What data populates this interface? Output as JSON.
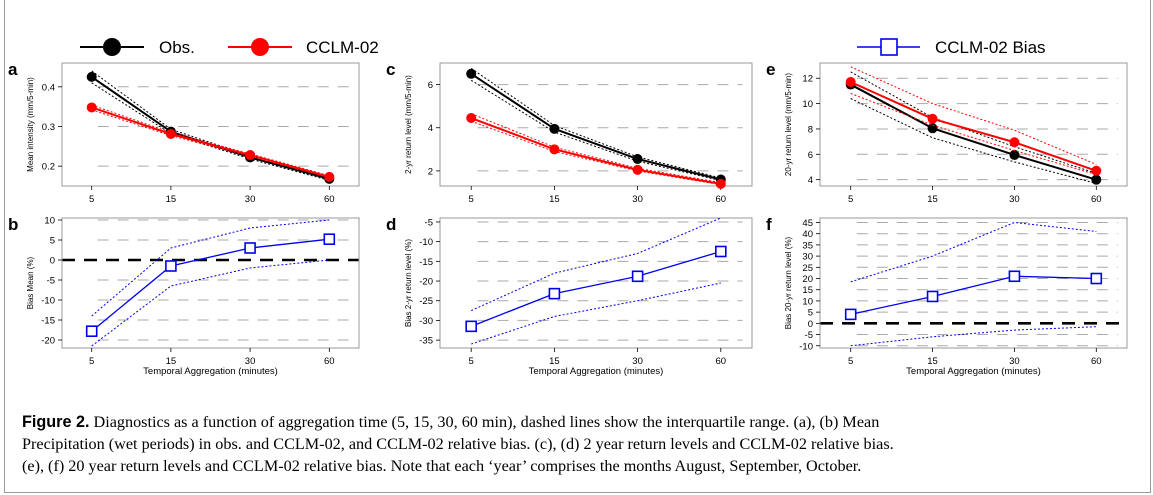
{
  "legend": {
    "obs_label": "Obs.",
    "model_label": "CCLM-02",
    "bias_label": "CCLM-02 Bias",
    "colors": {
      "obs": "#000000",
      "model": "#ff0000",
      "bias": "#0000ee",
      "zero_line": "#000000",
      "grid": "#aaaaaa"
    }
  },
  "caption": {
    "label": "Figure 2.",
    "line1": "Diagnostics as a function of aggregation time (5, 15, 30, 60 min), dashed lines show the interquartile range. (a), (b)  Mean",
    "line2": "Precipitation (wet periods) in obs. and CCLM-02, and CCLM-02 relative bias. (c), (d)  2 year return levels and CCLM-02 relative bias.",
    "line3": "(e), (f)  20 year return levels and CCLM-02 relative bias. Note that each ‘year’ comprises the months August, September, October."
  },
  "chart_data": [
    {
      "panel": "a",
      "type": "line",
      "categories": [
        "5",
        "15",
        "30",
        "60"
      ],
      "xlabel": "",
      "ylabel": "Mean intensity (mm/5-min)",
      "ylim": [
        0.15,
        0.46
      ],
      "yticks": [
        0.2,
        0.3,
        0.4
      ],
      "ytick_labels": [
        "0.2",
        "0.3",
        "0.4"
      ],
      "grid": true,
      "series": [
        {
          "name": "Obs.",
          "values": [
            0.425,
            0.287,
            0.222,
            0.168
          ],
          "q25": [
            0.41,
            0.282,
            0.218,
            0.164
          ],
          "q75": [
            0.44,
            0.293,
            0.226,
            0.172
          ]
        },
        {
          "name": "CCLM-02",
          "values": [
            0.348,
            0.281,
            0.228,
            0.173
          ],
          "q25": [
            0.342,
            0.277,
            0.225,
            0.171
          ],
          "q75": [
            0.354,
            0.285,
            0.231,
            0.176
          ]
        }
      ]
    },
    {
      "panel": "b",
      "type": "line",
      "categories": [
        "5",
        "15",
        "30",
        "60"
      ],
      "xlabel": "Temporal Aggregation (minutes)",
      "ylabel": "Bias Mean (%)",
      "ylim": [
        -22,
        10.5
      ],
      "yticks": [
        -20,
        -15,
        -10,
        -5,
        0,
        5,
        10
      ],
      "ytick_labels": [
        "-20",
        "-15",
        "-10",
        "-5",
        "0",
        "5",
        "10"
      ],
      "grid": true,
      "zero_line": 0,
      "series": [
        {
          "name": "CCLM-02 Bias",
          "values": [
            -17.8,
            -1.5,
            3,
            5.2
          ],
          "q25": [
            -21.5,
            -6.5,
            -2,
            0
          ],
          "q75": [
            -14,
            3,
            8,
            10
          ]
        }
      ]
    },
    {
      "panel": "c",
      "type": "line",
      "categories": [
        "5",
        "15",
        "30",
        "60"
      ],
      "xlabel": "",
      "ylabel": "2-yr return level (mm/5-min)",
      "ylim": [
        1.3,
        7.0
      ],
      "yticks": [
        2,
        4,
        6
      ],
      "ytick_labels": [
        "2",
        "4",
        "6"
      ],
      "grid": true,
      "series": [
        {
          "name": "Obs.",
          "values": [
            6.5,
            3.95,
            2.55,
            1.6
          ],
          "q25": [
            6.2,
            3.8,
            2.45,
            1.55
          ],
          "q75": [
            6.75,
            4.1,
            2.65,
            1.67
          ]
        },
        {
          "name": "CCLM-02",
          "values": [
            4.45,
            3.0,
            2.05,
            1.4
          ],
          "q25": [
            4.3,
            2.9,
            2.0,
            1.36
          ],
          "q75": [
            4.65,
            3.1,
            2.12,
            1.46
          ]
        }
      ]
    },
    {
      "panel": "d",
      "type": "line",
      "categories": [
        "5",
        "15",
        "30",
        "60"
      ],
      "xlabel": "Temporal Aggregation (minutes)",
      "ylabel": "Bias 2-yr return level (%)",
      "ylim": [
        -37,
        -4
      ],
      "yticks": [
        -35,
        -30,
        -25,
        -20,
        -15,
        -10,
        -5
      ],
      "ytick_labels": [
        "-35",
        "-30",
        "-25",
        "-20",
        "-15",
        "-10",
        "-5"
      ],
      "grid": true,
      "series": [
        {
          "name": "CCLM-02 Bias",
          "values": [
            -31.5,
            -23.2,
            -18.8,
            -12.5
          ],
          "q25": [
            -36,
            -29,
            -25,
            -20.5
          ],
          "q75": [
            -27.5,
            -18,
            -13,
            -4
          ]
        }
      ]
    },
    {
      "panel": "e",
      "type": "line",
      "categories": [
        "5",
        "15",
        "30",
        "60"
      ],
      "xlabel": "",
      "ylabel": "20-yr return level (mm/5-min)",
      "ylim": [
        3.5,
        13.2
      ],
      "yticks": [
        4,
        6,
        8,
        10,
        12
      ],
      "ytick_labels": [
        "4",
        "6",
        "8",
        "10",
        "12"
      ],
      "grid": true,
      "series": [
        {
          "name": "Obs.",
          "values": [
            11.5,
            8.05,
            5.95,
            4.0
          ],
          "q25": [
            10.4,
            7.3,
            5.4,
            3.7
          ],
          "q75": [
            12.5,
            8.9,
            6.6,
            4.5
          ]
        },
        {
          "name": "CCLM-02",
          "values": [
            11.7,
            8.8,
            6.95,
            4.7
          ],
          "q25": [
            10.8,
            8.3,
            6.3,
            4.4
          ],
          "q75": [
            12.9,
            10.0,
            7.9,
            5.2
          ]
        }
      ]
    },
    {
      "panel": "f",
      "type": "line",
      "categories": [
        "5",
        "15",
        "30",
        "60"
      ],
      "xlabel": "Temporal Aggregation (minutes)",
      "ylabel": "Bias 20-yr return level (%)",
      "ylim": [
        -11,
        47
      ],
      "yticks": [
        -10,
        -5,
        0,
        5,
        10,
        15,
        20,
        25,
        30,
        35,
        40,
        45
      ],
      "ytick_labels": [
        "-10",
        "-5",
        "0",
        "5",
        "10",
        "15",
        "20",
        "25",
        "30",
        "35",
        "40",
        "45"
      ],
      "grid": true,
      "zero_line": 0,
      "series": [
        {
          "name": "CCLM-02 Bias",
          "values": [
            4,
            12,
            21,
            20
          ],
          "q25": [
            -10,
            -6,
            -3,
            -1.5
          ],
          "q75": [
            18.5,
            30,
            45,
            41
          ]
        }
      ]
    }
  ]
}
